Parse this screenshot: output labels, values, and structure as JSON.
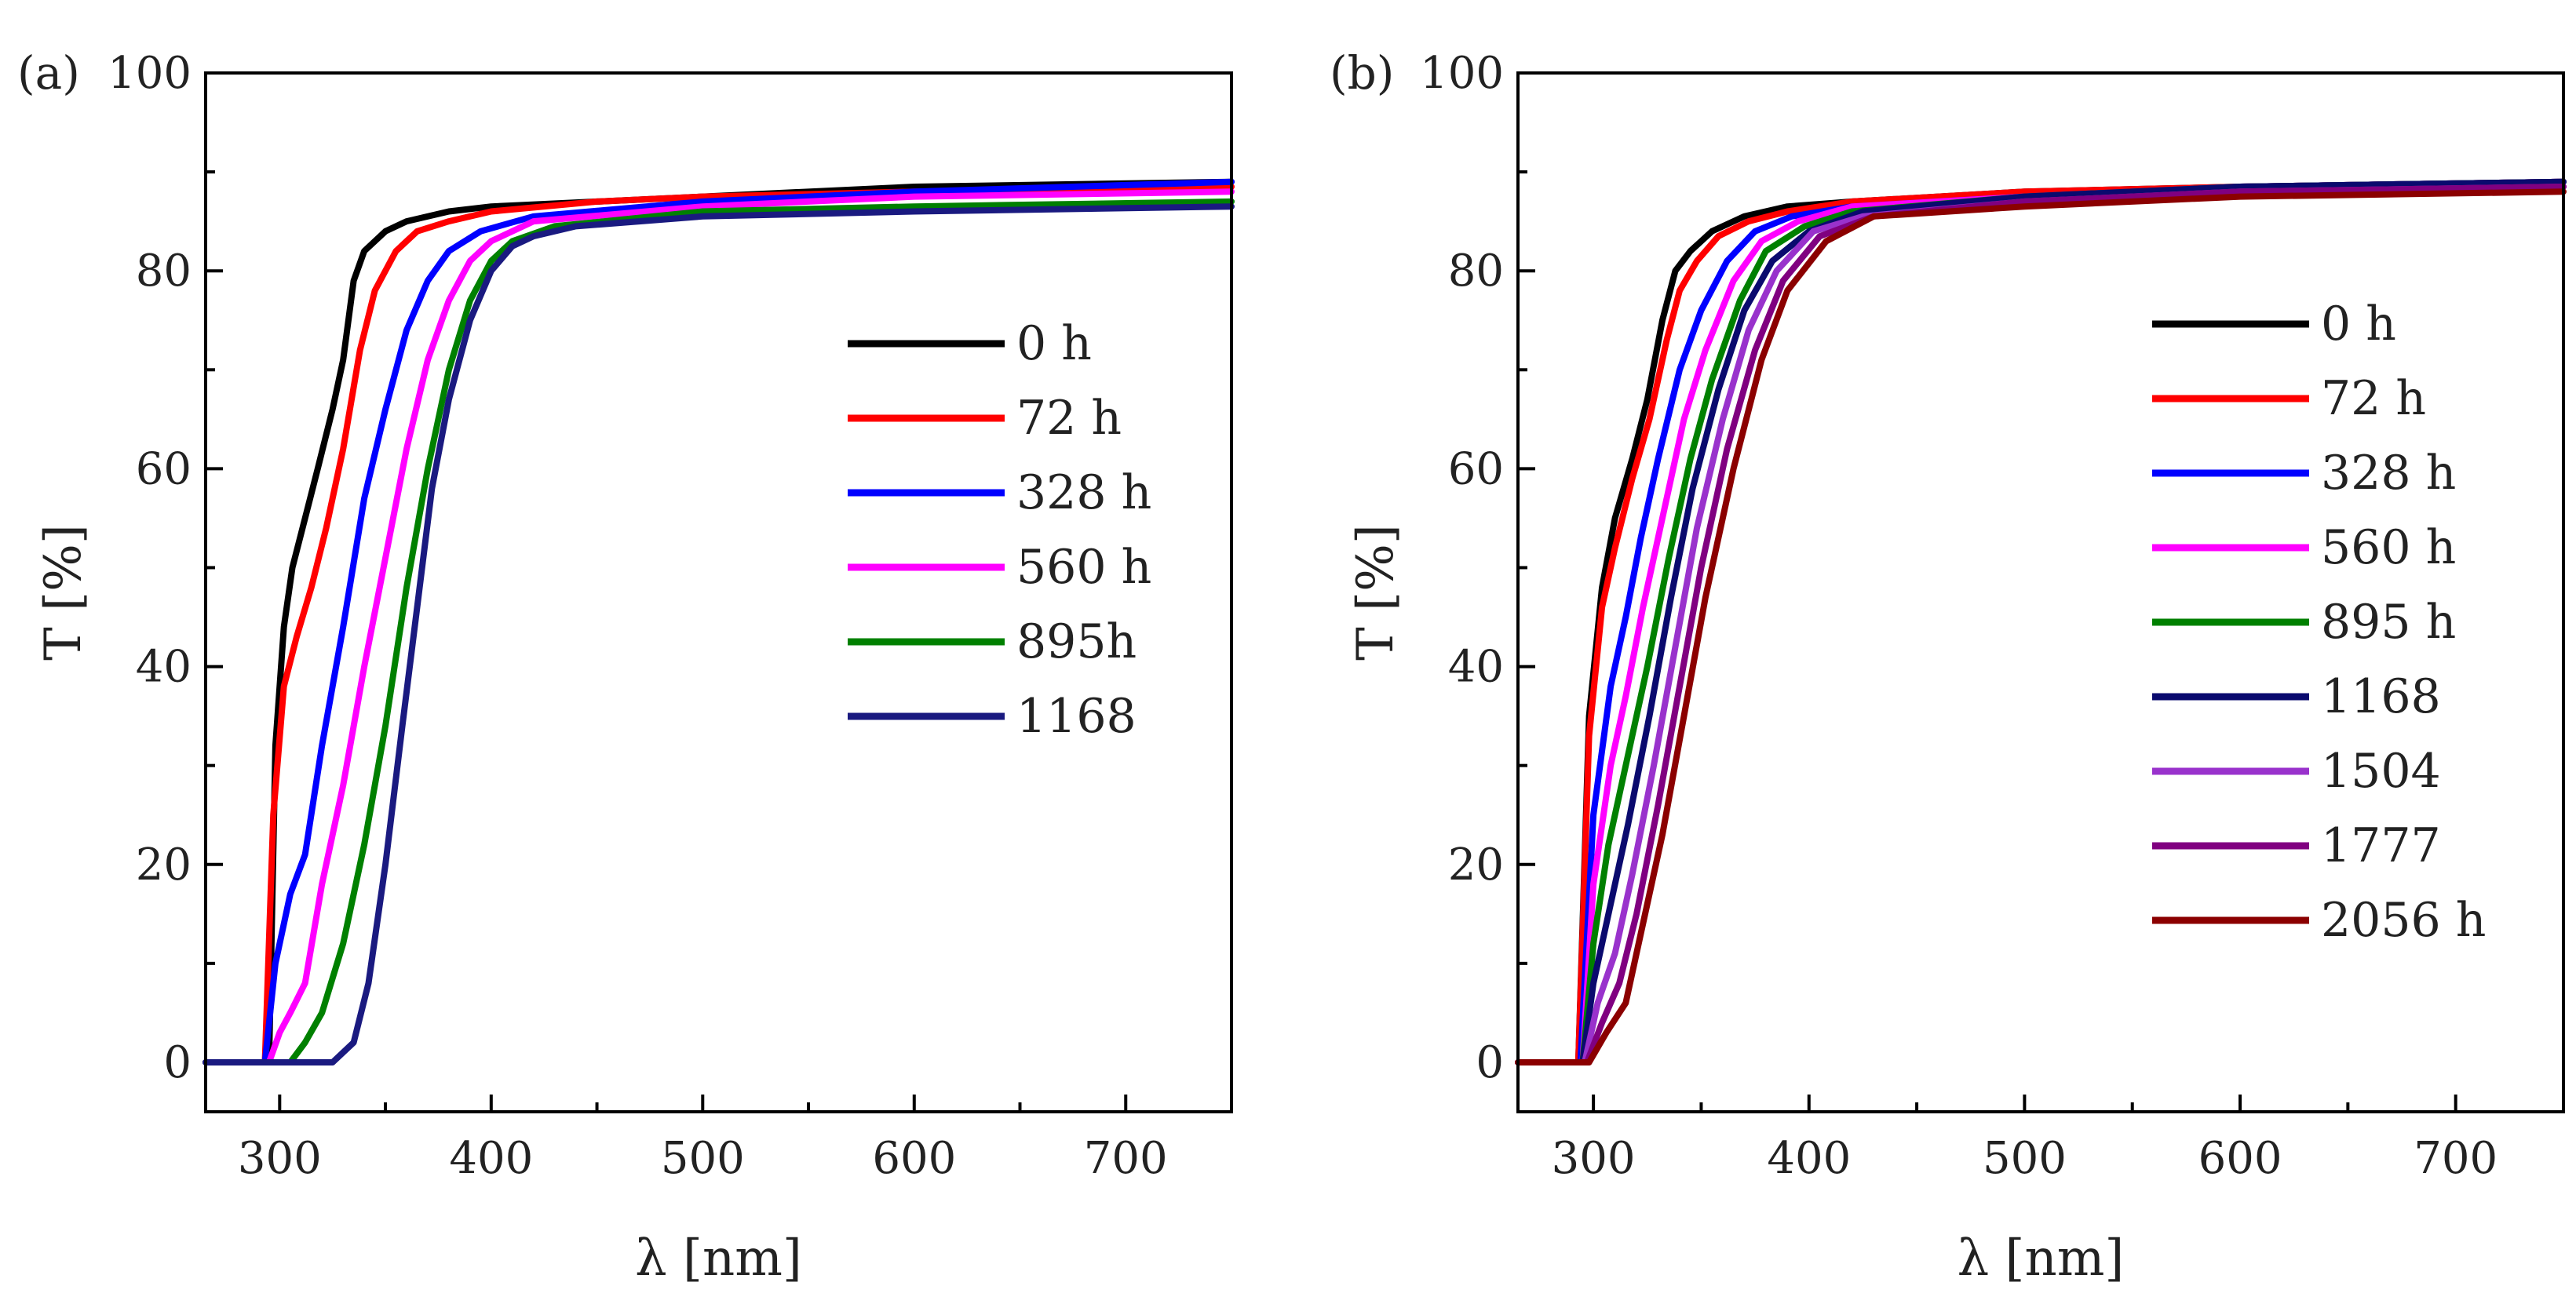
{
  "chart_data": [
    {
      "type": "line",
      "panel_label": "(a)",
      "xlabel": "λ [nm]",
      "ylabel": "T [%]",
      "xlim": [
        265,
        750
      ],
      "ylim": [
        -5,
        100
      ],
      "xticks": [
        300,
        400,
        500,
        600,
        700
      ],
      "yticks": [
        0,
        20,
        40,
        60,
        80,
        100
      ],
      "grid": false,
      "legend_position": "center-right",
      "series": [
        {
          "name": "0 h",
          "color": "#000000",
          "x": [
            265,
            295,
            298,
            302,
            306,
            312,
            318,
            325,
            330,
            335,
            340,
            350,
            360,
            380,
            400,
            450,
            500,
            600,
            750
          ],
          "y": [
            0,
            0,
            32,
            44,
            50,
            55,
            60,
            66,
            71,
            79,
            82,
            84,
            85,
            86,
            86.5,
            87,
            87.5,
            88.5,
            89
          ]
        },
        {
          "name": "72 h",
          "color": "#ff0000",
          "x": [
            265,
            293,
            297,
            302,
            308,
            315,
            322,
            330,
            338,
            345,
            355,
            365,
            380,
            400,
            450,
            500,
            600,
            750
          ],
          "y": [
            0,
            0,
            25,
            38,
            43,
            48,
            54,
            62,
            72,
            78,
            82,
            84,
            85,
            86,
            87,
            87.5,
            88,
            88.5
          ]
        },
        {
          "name": "328 h",
          "color": "#0000ff",
          "x": [
            265,
            293,
            298,
            305,
            312,
            320,
            330,
            340,
            350,
            360,
            370,
            380,
            395,
            420,
            500,
            600,
            750
          ],
          "y": [
            0,
            0,
            10,
            17,
            21,
            32,
            44,
            57,
            66,
            74,
            79,
            82,
            84,
            85.5,
            87,
            88,
            89
          ]
        },
        {
          "name": "560 h",
          "color": "#ff00ff",
          "x": [
            265,
            295,
            300,
            305,
            312,
            320,
            330,
            340,
            350,
            360,
            370,
            380,
            390,
            400,
            420,
            500,
            600,
            750
          ],
          "y": [
            0,
            0,
            3,
            5,
            8,
            18,
            28,
            40,
            51,
            62,
            71,
            77,
            81,
            83,
            85,
            86.5,
            87.5,
            88
          ]
        },
        {
          "name": "895h",
          "color": "#008000",
          "x": [
            265,
            305,
            312,
            320,
            330,
            340,
            350,
            360,
            370,
            380,
            390,
            400,
            410,
            430,
            500,
            600,
            750
          ],
          "y": [
            0,
            0,
            2,
            5,
            12,
            22,
            34,
            48,
            60,
            70,
            77,
            81,
            83,
            84.5,
            86,
            86.5,
            87
          ]
        },
        {
          "name": "1168",
          "color": "#1a1a80",
          "x": [
            265,
            325,
            335,
            342,
            350,
            358,
            365,
            372,
            380,
            390,
            400,
            410,
            420,
            440,
            500,
            600,
            750
          ],
          "y": [
            0,
            0,
            2,
            8,
            20,
            34,
            46,
            58,
            67,
            75,
            80,
            82.5,
            83.5,
            84.5,
            85.5,
            86,
            86.5
          ]
        }
      ]
    },
    {
      "type": "line",
      "panel_label": "(b)",
      "xlabel": "λ [nm]",
      "ylabel": "T [%]",
      "xlim": [
        265,
        750
      ],
      "ylim": [
        -5,
        100
      ],
      "xticks": [
        300,
        400,
        500,
        600,
        700
      ],
      "yticks": [
        0,
        20,
        40,
        60,
        80,
        100
      ],
      "grid": false,
      "legend_position": "center-right",
      "series": [
        {
          "name": "0 h",
          "color": "#000000",
          "x": [
            265,
            293,
            298,
            304,
            310,
            318,
            325,
            332,
            338,
            345,
            355,
            370,
            390,
            420,
            500,
            600,
            750
          ],
          "y": [
            0,
            0,
            35,
            48,
            55,
            61,
            67,
            75,
            80,
            82,
            84,
            85.5,
            86.5,
            87,
            88,
            88.5,
            89
          ]
        },
        {
          "name": "72 h",
          "color": "#ff0000",
          "x": [
            265,
            293,
            298,
            304,
            310,
            318,
            326,
            334,
            340,
            348,
            358,
            372,
            390,
            420,
            500,
            600,
            750
          ],
          "y": [
            0,
            0,
            33,
            46,
            52,
            59,
            65,
            73,
            78,
            81,
            83.5,
            85,
            86,
            87,
            88,
            88.5,
            89
          ]
        },
        {
          "name": "328 h",
          "color": "#0000ff",
          "x": [
            265,
            294,
            300,
            308,
            315,
            322,
            330,
            340,
            350,
            362,
            375,
            392,
            420,
            500,
            600,
            750
          ],
          "y": [
            0,
            0,
            25,
            38,
            45,
            53,
            61,
            70,
            76,
            81,
            84,
            85.5,
            86.5,
            87.5,
            88.5,
            89
          ]
        },
        {
          "name": "560 h",
          "color": "#ff00ff",
          "x": [
            265,
            295,
            300,
            308,
            315,
            323,
            332,
            342,
            352,
            365,
            378,
            395,
            420,
            500,
            600,
            750
          ],
          "y": [
            0,
            0,
            18,
            30,
            37,
            46,
            55,
            65,
            72,
            79,
            83,
            85,
            86.5,
            87.5,
            88.5,
            89
          ]
        },
        {
          "name": "895 h",
          "color": "#008000",
          "x": [
            265,
            295,
            300,
            307,
            315,
            325,
            335,
            345,
            355,
            368,
            380,
            398,
            420,
            500,
            600,
            750
          ],
          "y": [
            0,
            0,
            12,
            22,
            30,
            40,
            51,
            61,
            69,
            77,
            82,
            84.5,
            86,
            87.5,
            88.5,
            89
          ]
        },
        {
          "name": "1168",
          "color": "#0a0a6e",
          "x": [
            265,
            295,
            300,
            308,
            316,
            326,
            336,
            346,
            358,
            370,
            383,
            400,
            425,
            500,
            600,
            750
          ],
          "y": [
            0,
            0,
            8,
            16,
            24,
            35,
            47,
            58,
            68,
            76,
            81,
            84,
            86,
            87.5,
            88.5,
            89
          ]
        },
        {
          "name": "1504",
          "color": "#9932cc",
          "x": [
            265,
            296,
            302,
            310,
            318,
            328,
            338,
            348,
            360,
            372,
            385,
            402,
            425,
            500,
            600,
            750
          ],
          "y": [
            0,
            0,
            6,
            11,
            19,
            30,
            42,
            54,
            65,
            74,
            80,
            84,
            85.5,
            87,
            88,
            88.5
          ]
        },
        {
          "name": "1777",
          "color": "#800080",
          "x": [
            265,
            297,
            304,
            312,
            320,
            330,
            340,
            350,
            362,
            375,
            388,
            405,
            430,
            500,
            600,
            750
          ],
          "y": [
            0,
            0,
            4,
            8,
            15,
            26,
            38,
            50,
            62,
            72,
            79,
            83.5,
            85.5,
            87,
            88,
            88.5
          ]
        },
        {
          "name": "2056 h",
          "color": "#8b0000",
          "x": [
            265,
            298,
            306,
            315,
            322,
            332,
            342,
            352,
            365,
            378,
            390,
            408,
            430,
            500,
            600,
            750
          ],
          "y": [
            0,
            0,
            3,
            6,
            13,
            23,
            35,
            47,
            60,
            71,
            78,
            83,
            85.5,
            86.5,
            87.5,
            88
          ]
        }
      ]
    }
  ]
}
